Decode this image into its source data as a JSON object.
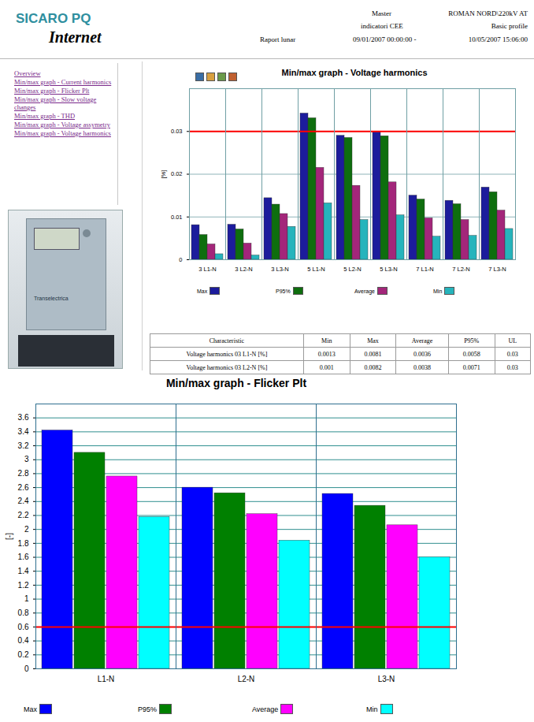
{
  "header": {
    "title": "SICARO PQ",
    "subtitle": "Internet",
    "master": "Master",
    "station": "ROMAN NORD\\220kV AT",
    "indicators": "indicatori CEE",
    "profile": "Basic profile",
    "report": "Raport lunar",
    "from": "09/01/2007 00:00:00 -",
    "to": "10/05/2007 15:06:00"
  },
  "nav": [
    "Overview",
    "Min/max graph - Current harmonics",
    "Min/max graph - Flicker Plt",
    "Min/max graph - Slow voltage changes",
    "Min/max graph - THD",
    "Min/max graph - Voltage assymetry",
    "Min/max graph - Voltage harmonics"
  ],
  "photo": {
    "label": "Transelectrica"
  },
  "chart_data": [
    {
      "type": "bar",
      "title": "Min/max graph - Voltage harmonics",
      "ylabel": "[%]",
      "categories": [
        "3 L1-N",
        "3 L2-N",
        "3 L3-N",
        "5 L1-N",
        "5 L2-N",
        "5 L3-N",
        "7 L1-N",
        "7 L2-N",
        "7 L3-N"
      ],
      "series": [
        {
          "name": "Max",
          "color": "#1c1c9c",
          "values": [
            0.0081,
            0.0082,
            0.0144,
            0.0342,
            0.029,
            0.03,
            0.015,
            0.0138,
            0.0169
          ]
        },
        {
          "name": "P95%",
          "color": "#0e6e0e",
          "values": [
            0.0058,
            0.0071,
            0.0129,
            0.0331,
            0.0285,
            0.0289,
            0.0141,
            0.013,
            0.0158
          ]
        },
        {
          "name": "Average",
          "color": "#a3267a",
          "values": [
            0.0036,
            0.0038,
            0.0107,
            0.0215,
            0.0173,
            0.0181,
            0.0097,
            0.0093,
            0.0115
          ]
        },
        {
          "name": "Min",
          "color": "#26b4bc",
          "values": [
            0.0013,
            0.001,
            0.0077,
            0.0132,
            0.0093,
            0.0104,
            0.0054,
            0.0056,
            0.0072
          ]
        }
      ],
      "limit": 0.03,
      "ylim": [
        0,
        0.04
      ],
      "yticks": [
        0,
        0.01,
        0.02,
        0.03
      ],
      "grid": true,
      "legend": "bottom"
    },
    {
      "type": "bar",
      "title": "Min/max graph - Flicker Plt",
      "ylabel": "[-]",
      "categories": [
        "L1-N",
        "L2-N",
        "L3-N"
      ],
      "series": [
        {
          "name": "Max",
          "color": "#0000ff",
          "values": [
            3.42,
            2.6,
            2.51
          ]
        },
        {
          "name": "P95%",
          "color": "#008000",
          "values": [
            3.1,
            2.52,
            2.34
          ]
        },
        {
          "name": "Average",
          "color": "#ff00ff",
          "values": [
            2.76,
            2.22,
            2.06
          ]
        },
        {
          "name": "Min",
          "color": "#00ffff",
          "values": [
            2.18,
            1.84,
            1.6
          ]
        }
      ],
      "limit": 0.6,
      "ylim": [
        0,
        3.8
      ],
      "yticks": [
        0,
        0.2,
        0.4,
        0.6,
        0.8,
        1,
        1.2,
        1.4,
        1.6,
        1.8,
        2,
        2.2,
        2.4,
        2.6,
        2.8,
        3,
        3.2,
        3.4,
        3.6
      ],
      "grid": true,
      "legend": "bottom"
    }
  ],
  "table": {
    "columns": [
      "Characteristic",
      "Min",
      "Max",
      "Average",
      "P95%",
      "UL"
    ],
    "rows": [
      [
        "Voltage harmonics 03 L1-N [%]",
        0.0013,
        0.0081,
        0.0036,
        0.0058,
        0.03
      ],
      [
        "Voltage harmonics 03 L2-N [%]",
        0.001,
        0.0082,
        0.0038,
        0.0071,
        0.03
      ]
    ]
  }
}
